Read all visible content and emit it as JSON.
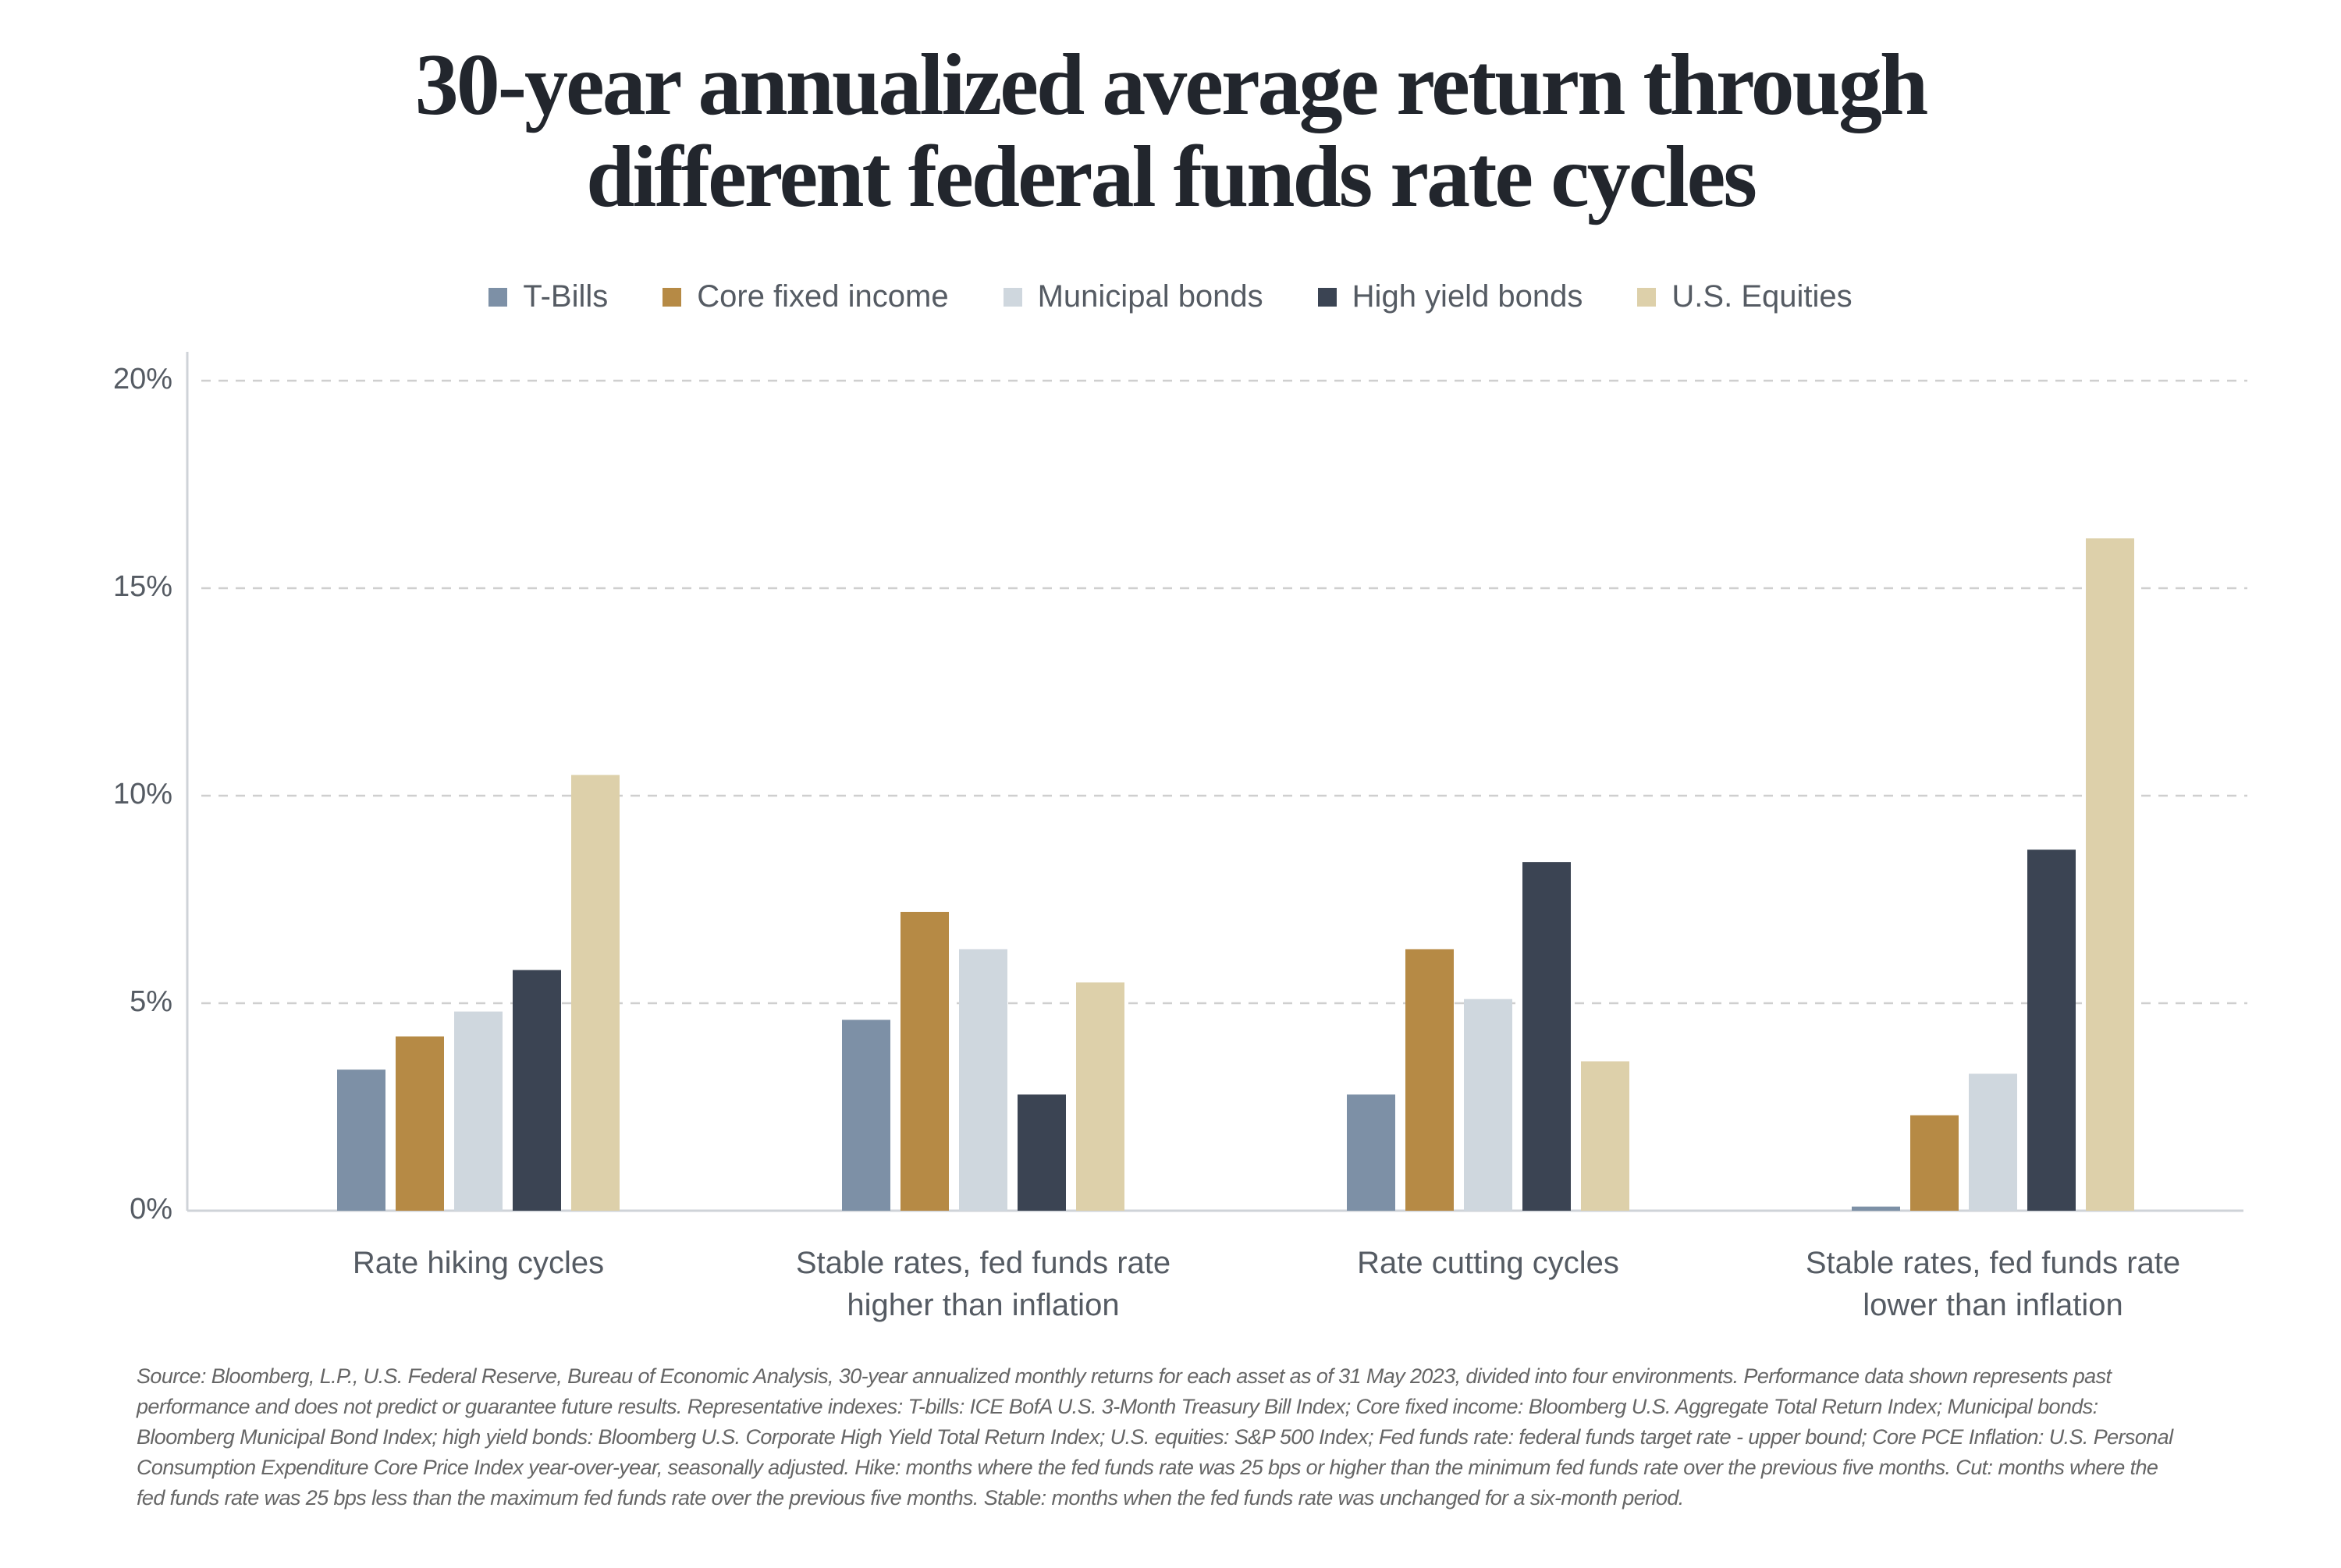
{
  "chart_data": {
    "type": "bar",
    "title": "30-year annualized average return through different federal funds rate cycles",
    "categories": [
      "Rate hiking cycles",
      "Stable rates, fed funds rate higher than inflation",
      "Rate cutting cycles",
      "Stable rates, fed funds rate lower than inflation"
    ],
    "series": [
      {
        "name": "T-Bills",
        "color": "#7d90a6",
        "values": [
          3.4,
          4.6,
          2.8,
          0.1
        ]
      },
      {
        "name": "Core fixed income",
        "color": "#b68a45",
        "values": [
          4.2,
          7.2,
          6.3,
          2.3
        ]
      },
      {
        "name": "Municipal bonds",
        "color": "#cfd7de",
        "values": [
          4.8,
          6.3,
          5.1,
          3.3
        ]
      },
      {
        "name": "High yield bonds",
        "color": "#3b4453",
        "values": [
          5.8,
          2.8,
          8.4,
          8.7
        ]
      },
      {
        "name": "U.S. Equities",
        "color": "#ddd0aa",
        "values": [
          10.5,
          5.5,
          3.6,
          16.2
        ]
      }
    ],
    "ylim": [
      0,
      20
    ],
    "yticks": [
      {
        "value": 0,
        "label": "0%"
      },
      {
        "value": 5,
        "label": "5%"
      },
      {
        "value": 10,
        "label": "10%"
      },
      {
        "value": 15,
        "label": "15%"
      },
      {
        "value": 20,
        "label": "20%"
      }
    ],
    "grid": true,
    "legend": "top",
    "source": "Source: Bloomberg, L.P., U.S. Federal Reserve, Bureau of Economic Analysis, 30-year annualized monthly returns for each asset as of 31 May 2023, divided into four environments. Performance data shown represents past performance and does not predict or guarantee future results. Representative indexes: T-bills: ICE BofA U.S. 3-Month Treasury Bill Index; Core fixed income: Bloomberg U.S. Aggregate Total Return Index; Municipal bonds: Bloomberg Municipal Bond Index; high yield bonds: Bloomberg U.S. Corporate High Yield Total Return Index; U.S. equities: S&P 500 Index; Fed funds rate: federal funds target rate - upper bound; Core PCE Inflation: U.S. Personal Consumption Expenditure Core Price Index year-over-year, seasonally adjusted. Hike: months where the fed funds rate was 25 bps or higher than the minimum fed funds rate over the previous five months. Cut: months where the fed funds rate was 25 bps less than the maximum fed funds rate over the previous five months. Stable: months when the fed funds rate was unchanged for a six-month period."
  }
}
